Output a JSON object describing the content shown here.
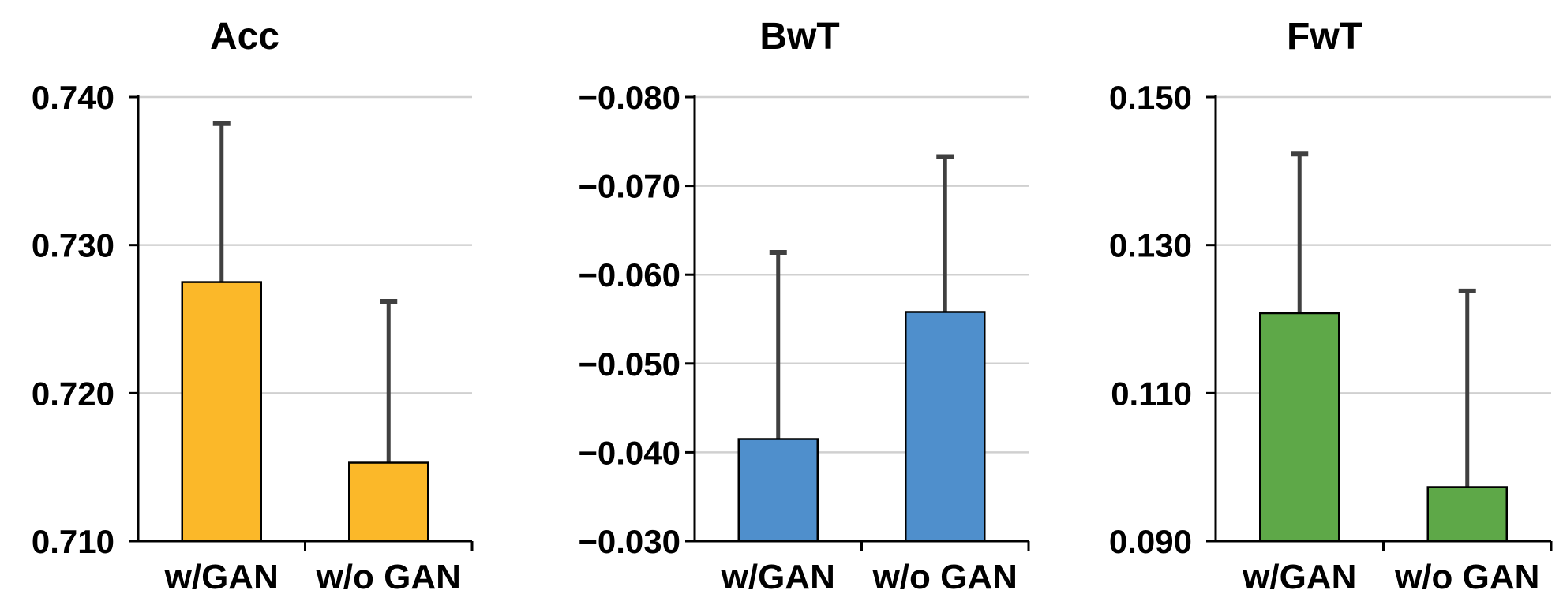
{
  "chart_data": [
    {
      "type": "bar",
      "title": "Acc",
      "categories": [
        "w/GAN",
        "w/o GAN"
      ],
      "values": [
        0.7275,
        0.7153
      ],
      "error_upper": [
        0.0107,
        0.0109
      ],
      "ylim": [
        0.71,
        0.74
      ],
      "yticks": [
        0.71,
        0.72,
        0.73,
        0.74
      ],
      "ytick_labels": [
        "0.710",
        "0.720",
        "0.730",
        "0.740"
      ],
      "inverted": false,
      "grid": true,
      "bar_color": "#FBB829"
    },
    {
      "type": "bar",
      "title": "BwT",
      "categories": [
        "w/GAN",
        "w/o GAN"
      ],
      "values": [
        -0.0415,
        -0.0558
      ],
      "error_upper": [
        0.021,
        0.0175
      ],
      "ylim": [
        -0.03,
        -0.08
      ],
      "yticks": [
        -0.03,
        -0.04,
        -0.05,
        -0.06,
        -0.07,
        -0.08
      ],
      "ytick_labels": [
        "−0.030",
        "−0.040",
        "−0.050",
        "−0.060",
        "−0.070",
        "−0.080"
      ],
      "inverted": true,
      "grid": true,
      "bar_color": "#4F8FCC"
    },
    {
      "type": "bar",
      "title": "FwT",
      "categories": [
        "w/GAN",
        "w/o GAN"
      ],
      "values": [
        0.1208,
        0.0973
      ],
      "error_upper": [
        0.0215,
        0.0265
      ],
      "ylim": [
        0.09,
        0.15
      ],
      "yticks": [
        0.09,
        0.11,
        0.13,
        0.15
      ],
      "ytick_labels": [
        "0.090",
        "0.110",
        "0.130",
        "0.150"
      ],
      "inverted": false,
      "grid": true,
      "bar_color": "#5EA848"
    }
  ]
}
